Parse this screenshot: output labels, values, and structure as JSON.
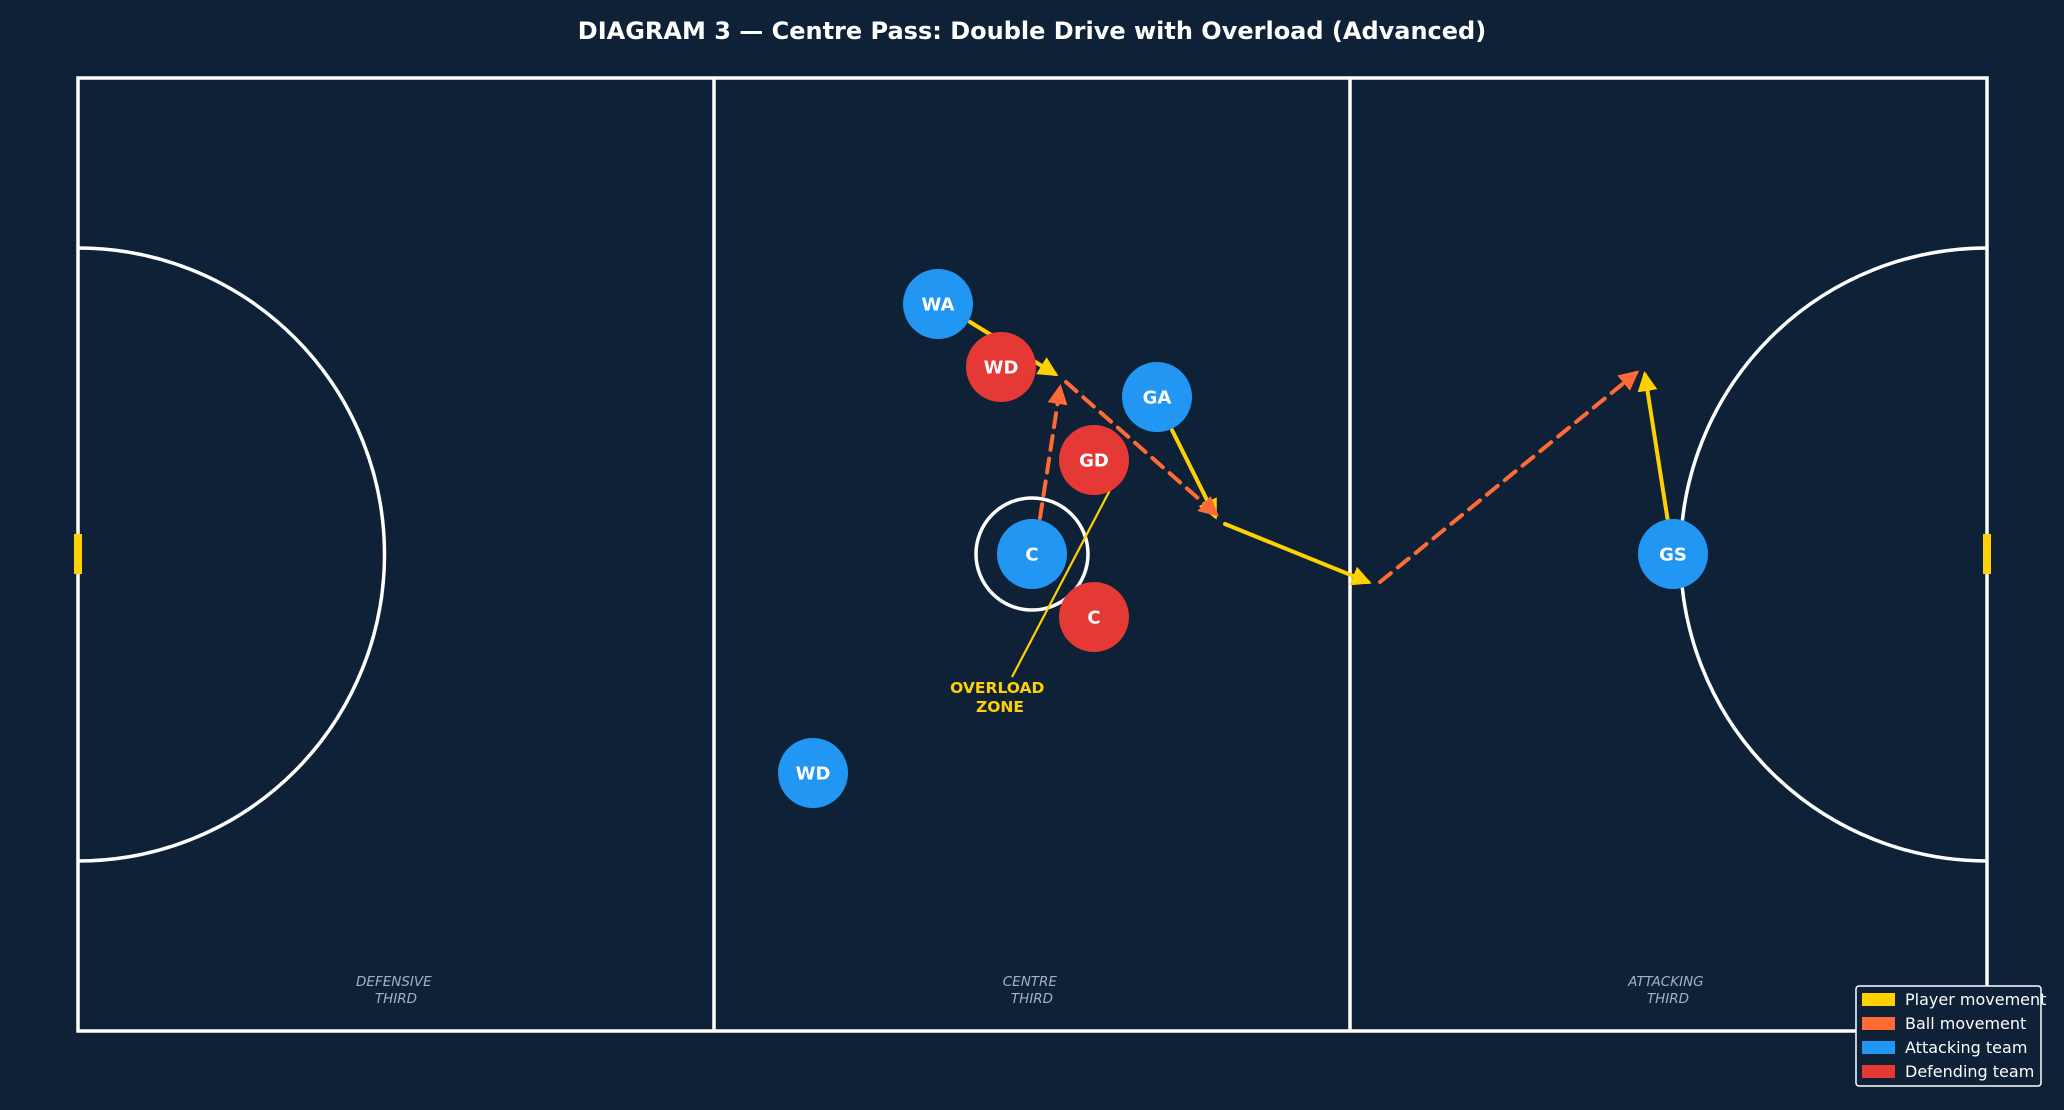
{
  "title": "DIAGRAM 3 — Centre Pass: Double Drive with Overload (Advanced)",
  "colors": {
    "background": "#0e2137",
    "court_lines": "#ffffff",
    "player_movement": "#ffd100",
    "ball_movement": "#ff6b35",
    "attacking": "#2196f3",
    "defending": "#e53935",
    "third_label": "#9fb2c8"
  },
  "thirds": [
    {
      "line1": "DEFENSIVE",
      "line2": "THIRD"
    },
    {
      "line1": "CENTRE",
      "line2": "THIRD"
    },
    {
      "line1": "ATTACKING",
      "line2": "THIRD"
    }
  ],
  "players": {
    "attacking": [
      "WA",
      "GA",
      "C",
      "WD",
      "GS"
    ],
    "defending": [
      "WD",
      "GD",
      "C"
    ]
  },
  "annotation": {
    "line1": "OVERLOAD",
    "line2": "ZONE"
  },
  "legend": [
    {
      "label": "Player movement",
      "color": "#ffd100"
    },
    {
      "label": "Ball movement",
      "color": "#ff6b35"
    },
    {
      "label": "Attacking team",
      "color": "#2196f3"
    },
    {
      "label": "Defending team",
      "color": "#e53935"
    }
  ]
}
